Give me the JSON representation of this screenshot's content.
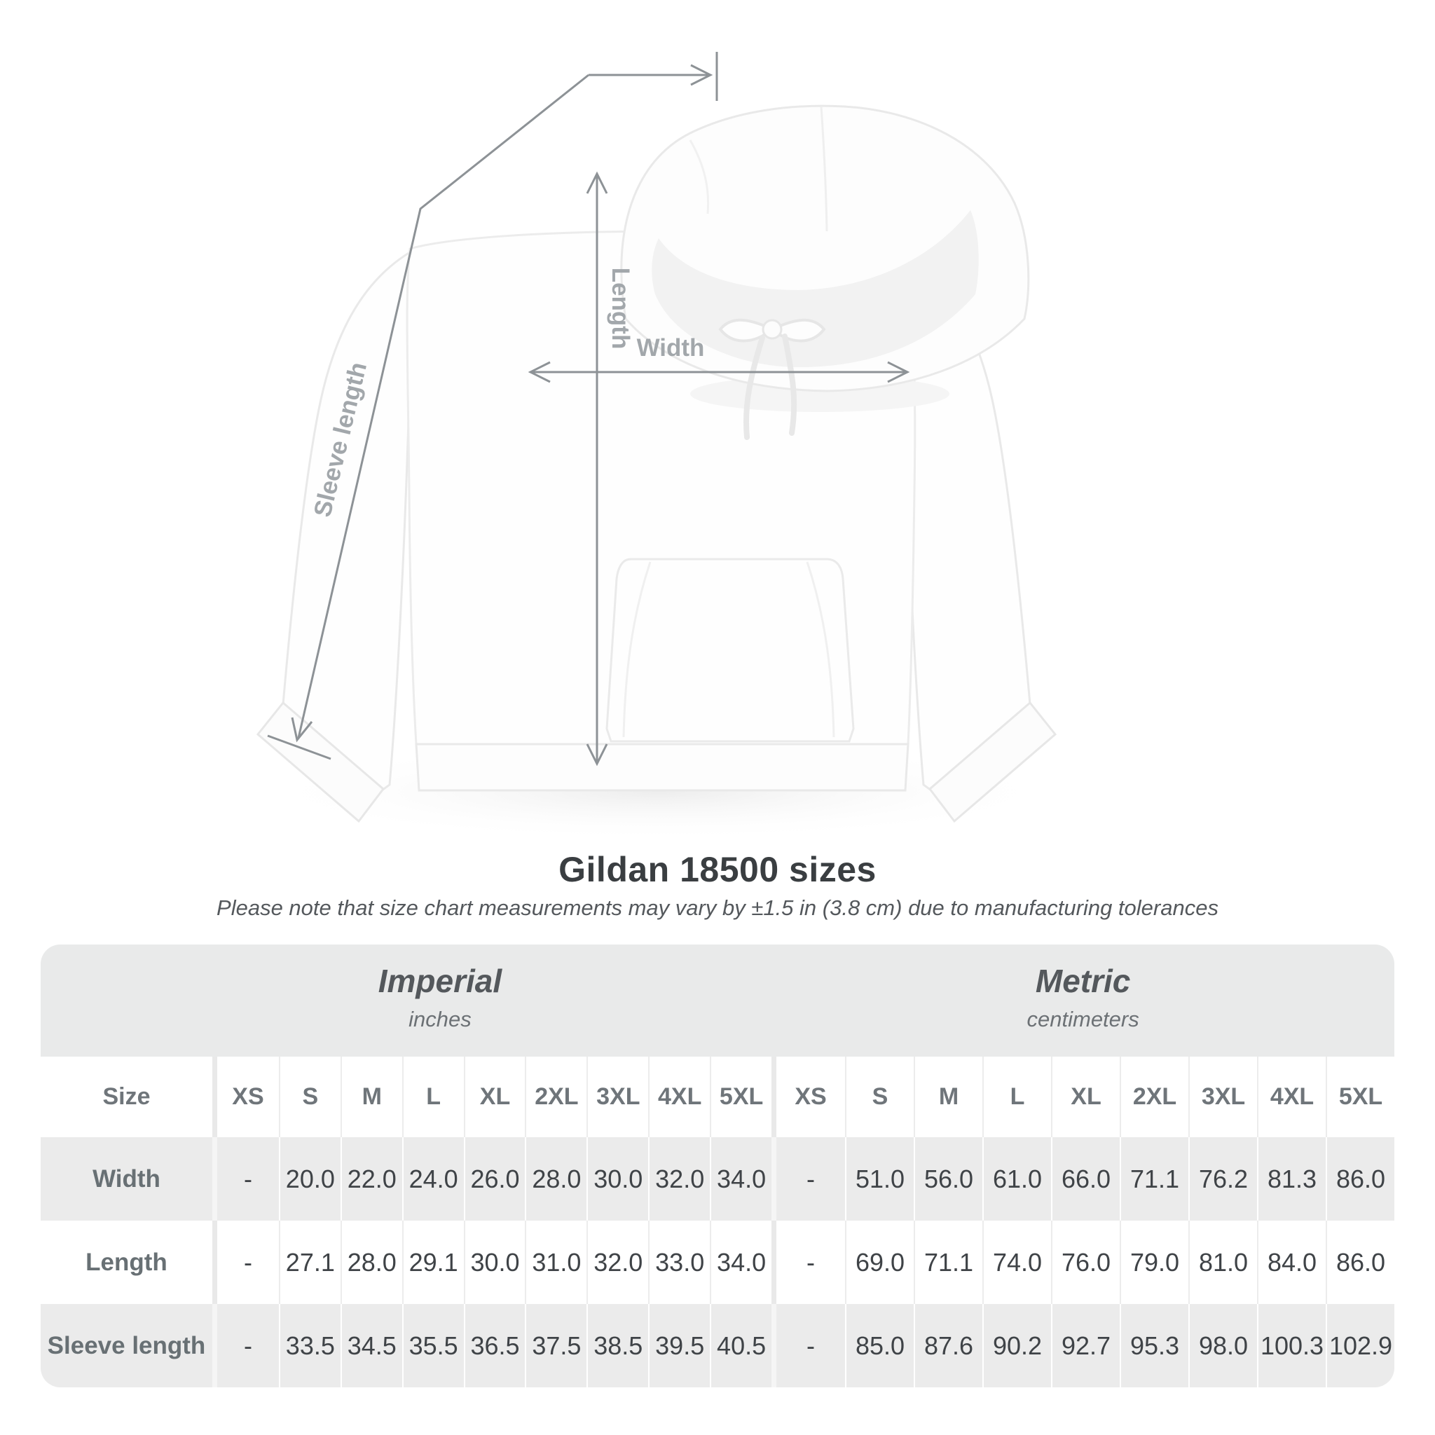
{
  "page": {
    "background": "#ffffff"
  },
  "diagram": {
    "length_label": "Length",
    "width_label": "Width",
    "sleeve_label": "Sleeve length",
    "line_color": "#8d9296",
    "label_color": "#a2a7ab"
  },
  "title": "Gildan 18500 sizes",
  "note": "Please note that size chart measurements may vary by ±1.5 in (3.8 cm) due to manufacturing tolerances",
  "table": {
    "size_column_header": "Size",
    "groups": [
      {
        "label": "Imperial",
        "unit": "inches"
      },
      {
        "label": "Metric",
        "unit": "centimeters"
      }
    ],
    "sizes": [
      "XS",
      "S",
      "M",
      "L",
      "XL",
      "2XL",
      "3XL",
      "4XL",
      "5XL"
    ],
    "rows": [
      {
        "label": "Width",
        "imperial": [
          "-",
          "20.0",
          "22.0",
          "24.0",
          "26.0",
          "28.0",
          "30.0",
          "32.0",
          "34.0"
        ],
        "metric": [
          "-",
          "51.0",
          "56.0",
          "61.0",
          "66.0",
          "71.1",
          "76.2",
          "81.3",
          "86.0"
        ]
      },
      {
        "label": "Length",
        "imperial": [
          "-",
          "27.1",
          "28.0",
          "29.1",
          "30.0",
          "31.0",
          "32.0",
          "33.0",
          "34.0"
        ],
        "metric": [
          "-",
          "69.0",
          "71.1",
          "74.0",
          "76.0",
          "79.0",
          "81.0",
          "84.0",
          "86.0"
        ]
      },
      {
        "label": "Sleeve length",
        "imperial": [
          "-",
          "33.5",
          "34.5",
          "35.5",
          "36.5",
          "37.5",
          "38.5",
          "39.5",
          "40.5"
        ],
        "metric": [
          "-",
          "85.0",
          "87.6",
          "90.2",
          "92.7",
          "95.3",
          "98.0",
          "100.3",
          "102.9"
        ]
      }
    ],
    "colors": {
      "band": "#e9eaea",
      "stripe": "#ebebeb",
      "header_text": "#6f757a",
      "label_text": "#687074",
      "value_text": "#3f4347"
    }
  },
  "chart_data": {
    "type": "table",
    "title": "Gildan 18500 sizes",
    "columns": [
      "Size",
      "XS",
      "S",
      "M",
      "L",
      "XL",
      "2XL",
      "3XL",
      "4XL",
      "5XL"
    ],
    "units": {
      "imperial": "inches",
      "metric": "centimeters"
    },
    "rows_imperial": [
      [
        "Width",
        null,
        20.0,
        22.0,
        24.0,
        26.0,
        28.0,
        30.0,
        32.0,
        34.0
      ],
      [
        "Length",
        null,
        27.1,
        28.0,
        29.1,
        30.0,
        31.0,
        32.0,
        33.0,
        34.0
      ],
      [
        "Sleeve length",
        null,
        33.5,
        34.5,
        35.5,
        36.5,
        37.5,
        38.5,
        39.5,
        40.5
      ]
    ],
    "rows_metric": [
      [
        "Width",
        null,
        51.0,
        56.0,
        61.0,
        66.0,
        71.1,
        76.2,
        81.3,
        86.0
      ],
      [
        "Length",
        null,
        69.0,
        71.1,
        74.0,
        76.0,
        79.0,
        81.0,
        84.0,
        86.0
      ],
      [
        "Sleeve length",
        null,
        85.0,
        87.6,
        90.2,
        92.7,
        95.3,
        98.0,
        100.3,
        102.9
      ]
    ]
  }
}
